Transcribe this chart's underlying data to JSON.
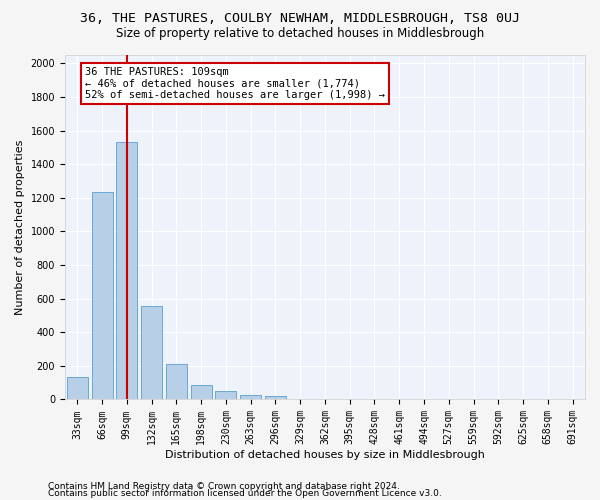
{
  "title": "36, THE PASTURES, COULBY NEWHAM, MIDDLESBROUGH, TS8 0UJ",
  "subtitle": "Size of property relative to detached houses in Middlesbrough",
  "xlabel": "Distribution of detached houses by size in Middlesbrough",
  "ylabel": "Number of detached properties",
  "footnote1": "Contains HM Land Registry data © Crown copyright and database right 2024.",
  "footnote2": "Contains public sector information licensed under the Open Government Licence v3.0.",
  "bar_labels": [
    "33sqm",
    "66sqm",
    "99sqm",
    "132sqm",
    "165sqm",
    "198sqm",
    "230sqm",
    "263sqm",
    "296sqm",
    "329sqm",
    "362sqm",
    "395sqm",
    "428sqm",
    "461sqm",
    "494sqm",
    "527sqm",
    "559sqm",
    "592sqm",
    "625sqm",
    "658sqm",
    "691sqm"
  ],
  "bar_values": [
    135,
    1235,
    1535,
    555,
    210,
    88,
    50,
    28,
    18,
    0,
    0,
    0,
    0,
    0,
    0,
    0,
    0,
    0,
    0,
    0,
    0
  ],
  "bar_color": "#b8cfe8",
  "bar_edge_color": "#5a9fd4",
  "vline_x": 2.0,
  "vline_color": "#cc0000",
  "annotation_text": "36 THE PASTURES: 109sqm\n← 46% of detached houses are smaller (1,774)\n52% of semi-detached houses are larger (1,998) →",
  "annotation_box_facecolor": "#ffffff",
  "annotation_box_edgecolor": "#cc0000",
  "ylim": [
    0,
    2050
  ],
  "yticks": [
    0,
    200,
    400,
    600,
    800,
    1000,
    1200,
    1400,
    1600,
    1800,
    2000
  ],
  "fig_facecolor": "#f5f5f5",
  "ax_facecolor": "#eef2fb",
  "grid_color": "#ffffff",
  "title_fontsize": 9.5,
  "subtitle_fontsize": 8.5,
  "xlabel_fontsize": 8,
  "ylabel_fontsize": 8,
  "tick_fontsize": 7,
  "annotation_fontsize": 7.5,
  "footnote_fontsize": 6.5
}
